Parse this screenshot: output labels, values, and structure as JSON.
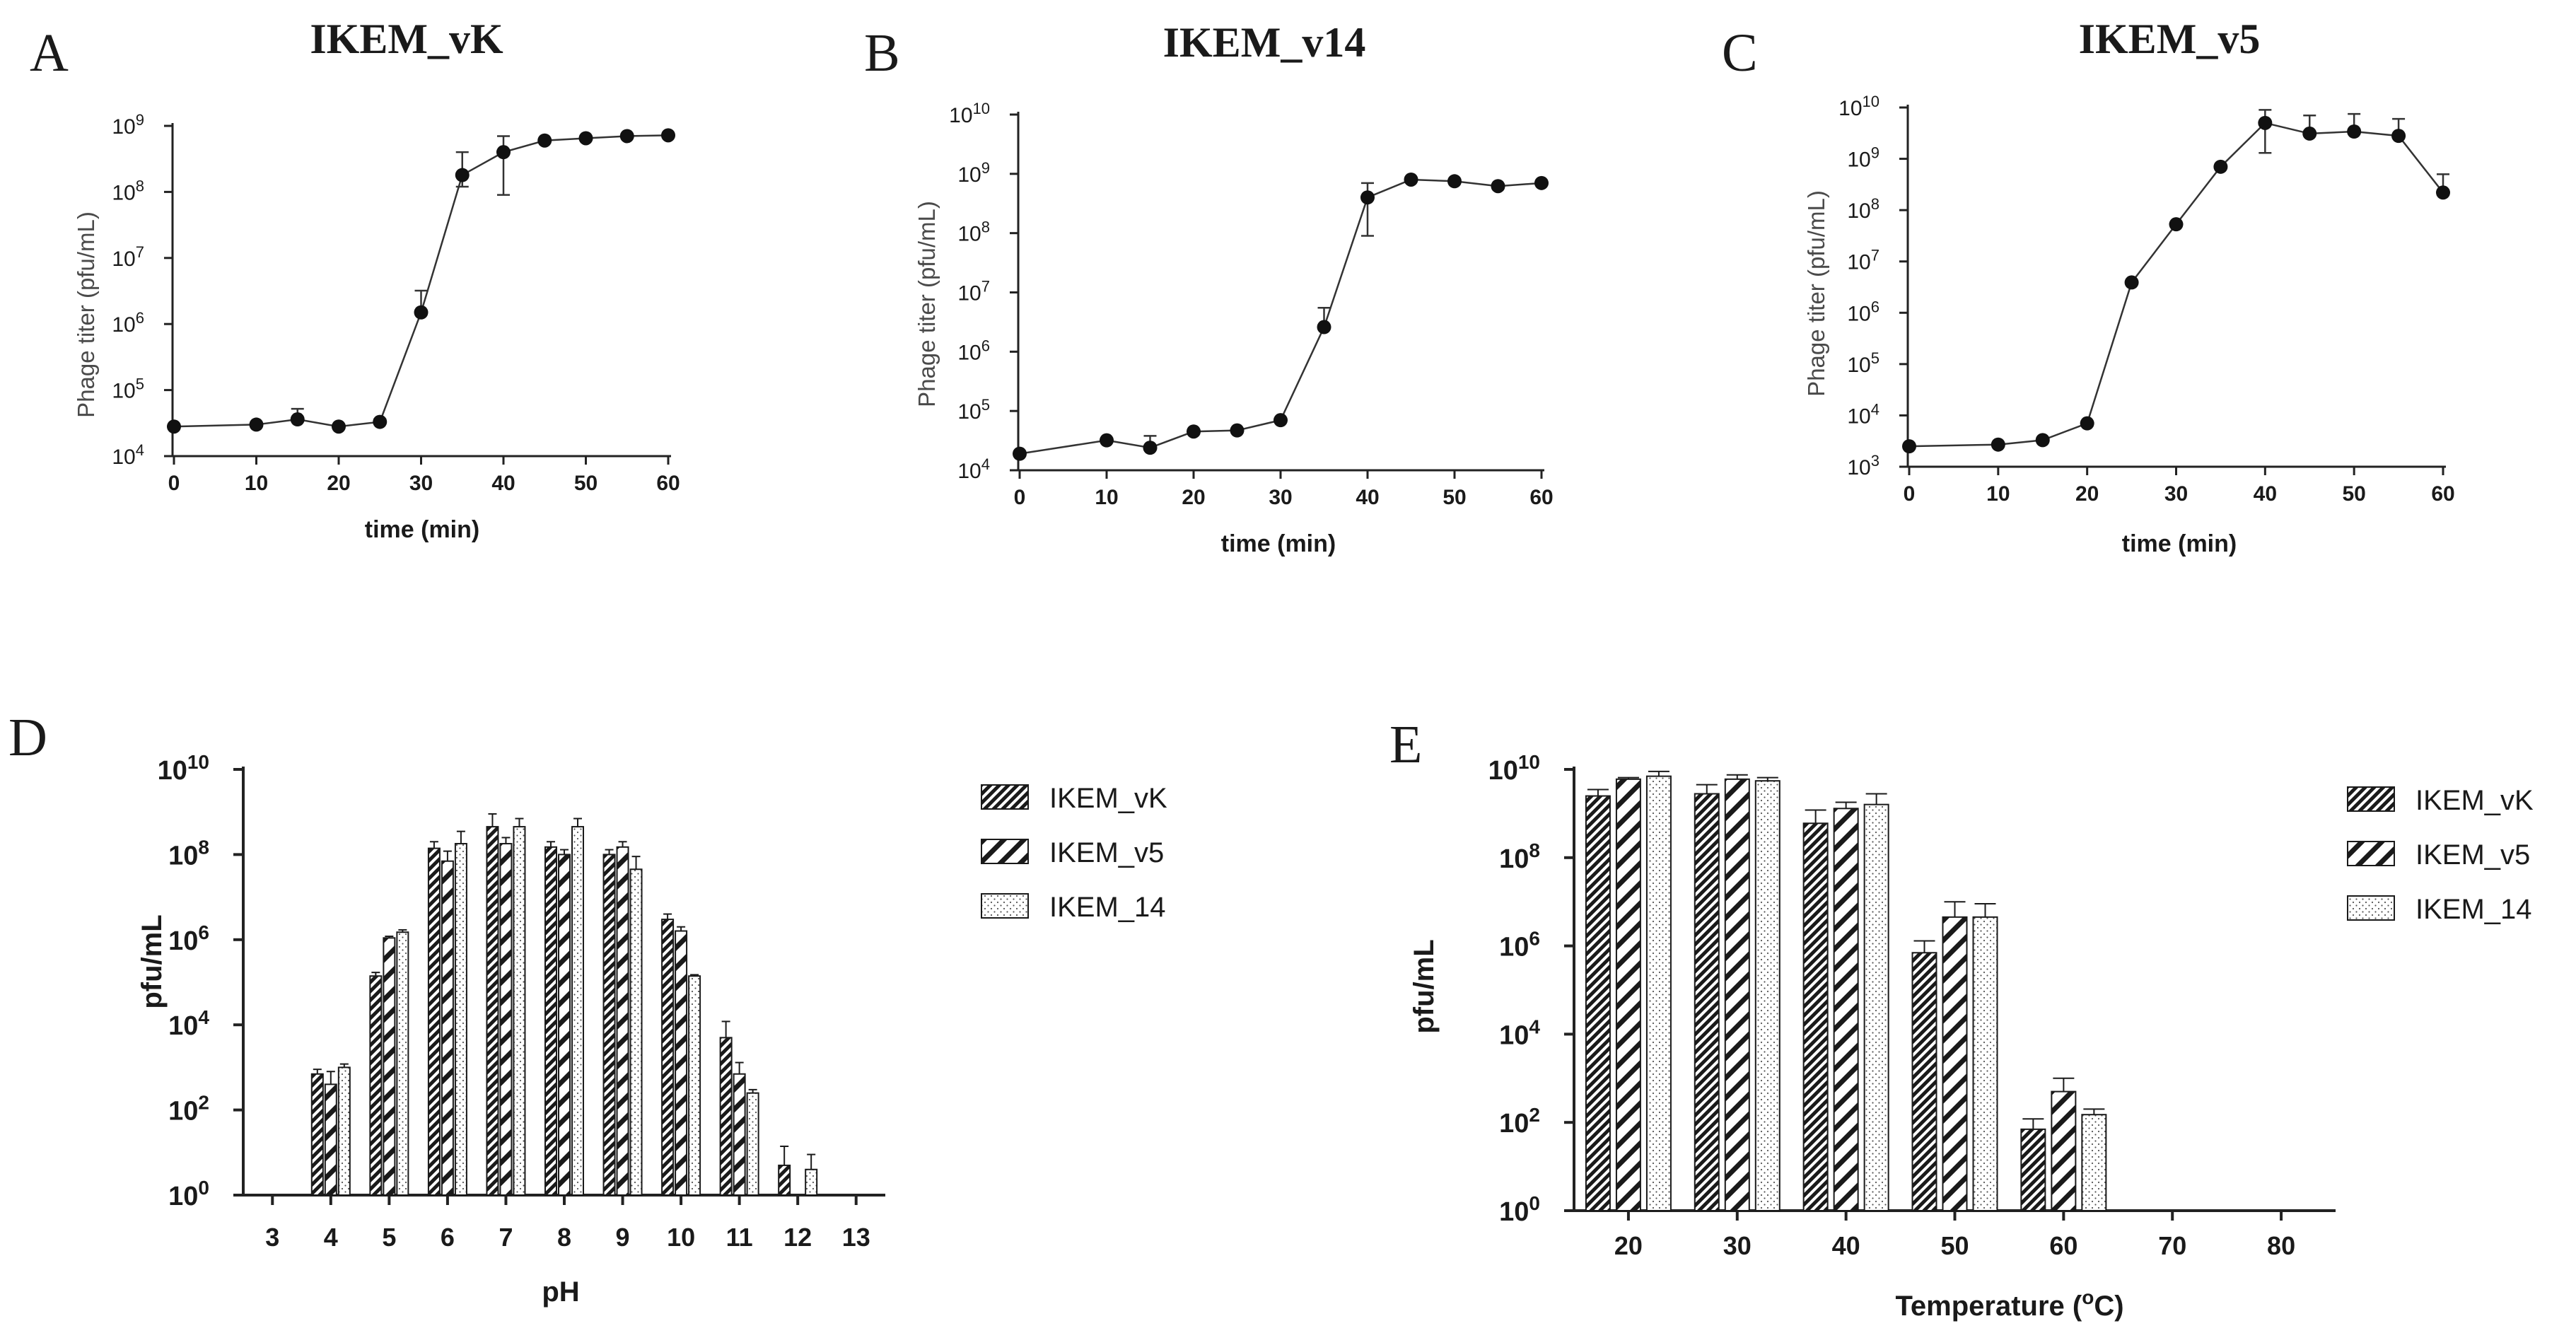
{
  "colors": {
    "ink": "#1a1a1a",
    "axis": "#222222",
    "ylabel_line": "#4a4a4a",
    "background": "#ffffff"
  },
  "chart_data": [
    {
      "panel": "A",
      "type": "line",
      "title": "IKEM_vK",
      "xlabel": "time (min)",
      "ylabel": "Phage titer (pfu/mL)",
      "yscale": "log",
      "ylim_exp": [
        4,
        9
      ],
      "xlim": [
        0,
        60
      ],
      "xticks": [
        0,
        10,
        20,
        30,
        40,
        50,
        60
      ],
      "yticks_exp": [
        4,
        5,
        6,
        7,
        8,
        9
      ],
      "points": [
        {
          "x": 0,
          "y": 28000
        },
        {
          "x": 10,
          "y": 30000
        },
        {
          "x": 15,
          "y": 36000,
          "err_hi": 52000
        },
        {
          "x": 20,
          "y": 28000
        },
        {
          "x": 25,
          "y": 33000,
          "err_hi": 36000
        },
        {
          "x": 30,
          "y": 1500000,
          "err_hi": 3200000
        },
        {
          "x": 35,
          "y": 180000000,
          "err_hi": 400000000,
          "err_lo": 120000000
        },
        {
          "x": 40,
          "y": 400000000,
          "err_hi": 700000000,
          "err_lo": 90000000
        },
        {
          "x": 45,
          "y": 600000000
        },
        {
          "x": 50,
          "y": 650000000
        },
        {
          "x": 55,
          "y": 700000000
        },
        {
          "x": 60,
          "y": 720000000
        }
      ]
    },
    {
      "panel": "B",
      "type": "line",
      "title": "IKEM_v14",
      "xlabel": "time (min)",
      "ylabel": "Phage titer (pfu/mL)",
      "yscale": "log",
      "ylim_exp": [
        4,
        10
      ],
      "xlim": [
        0,
        60
      ],
      "xticks": [
        0,
        10,
        20,
        30,
        40,
        50,
        60
      ],
      "yticks_exp": [
        4,
        5,
        6,
        7,
        8,
        9,
        10
      ],
      "points": [
        {
          "x": 0,
          "y": 19000
        },
        {
          "x": 10,
          "y": 32000
        },
        {
          "x": 15,
          "y": 24000,
          "err_hi": 38000
        },
        {
          "x": 20,
          "y": 45000
        },
        {
          "x": 25,
          "y": 47000
        },
        {
          "x": 30,
          "y": 70000
        },
        {
          "x": 35,
          "y": 2600000,
          "err_hi": 5500000
        },
        {
          "x": 40,
          "y": 400000000,
          "err_hi": 700000000,
          "err_lo": 90000000
        },
        {
          "x": 45,
          "y": 800000000
        },
        {
          "x": 50,
          "y": 750000000
        },
        {
          "x": 55,
          "y": 620000000
        },
        {
          "x": 60,
          "y": 700000000
        }
      ]
    },
    {
      "panel": "C",
      "type": "line",
      "title": "IKEM_v5",
      "xlabel": "time (min)",
      "ylabel": "Phage titer (pfu/mL)",
      "yscale": "log",
      "ylim_exp": [
        3,
        10
      ],
      "xlim": [
        0,
        60
      ],
      "xticks": [
        0,
        10,
        20,
        30,
        40,
        50,
        60
      ],
      "yticks_exp": [
        3,
        4,
        5,
        6,
        7,
        8,
        9,
        10
      ],
      "points": [
        {
          "x": 0,
          "y": 2500
        },
        {
          "x": 10,
          "y": 2700
        },
        {
          "x": 15,
          "y": 3300
        },
        {
          "x": 20,
          "y": 7000
        },
        {
          "x": 25,
          "y": 3900000
        },
        {
          "x": 30,
          "y": 53000000
        },
        {
          "x": 35,
          "y": 700000000
        },
        {
          "x": 40,
          "y": 5000000000,
          "err_hi": 9000000000,
          "err_lo": 1300000000
        },
        {
          "x": 45,
          "y": 3100000000,
          "err_hi": 7000000000
        },
        {
          "x": 50,
          "y": 3400000000,
          "err_hi": 7500000000
        },
        {
          "x": 55,
          "y": 2800000000,
          "err_hi": 6000000000
        },
        {
          "x": 60,
          "y": 220000000,
          "err_hi": 500000000
        }
      ]
    },
    {
      "panel": "D",
      "type": "bar",
      "xlabel": "pH",
      "ylabel": "pfu/mL",
      "yscale": "log",
      "ylim_exp": [
        0,
        10
      ],
      "yticks_exp": [
        0,
        2,
        4,
        6,
        8,
        10
      ],
      "categories": [
        "3",
        "4",
        "5",
        "6",
        "7",
        "8",
        "9",
        "10",
        "11",
        "12",
        "13"
      ],
      "series": [
        {
          "name": "IKEM_vK",
          "pattern": "hatch-dense",
          "values": [
            null,
            700,
            140000,
            140000000,
            450000000,
            150000000,
            100000000,
            3000000,
            5000,
            5,
            null
          ],
          "err_hi": [
            null,
            900,
            170000,
            200000000,
            900000000,
            200000000,
            130000000,
            4000000,
            12000,
            14,
            null
          ]
        },
        {
          "name": "IKEM_v5",
          "pattern": "hatch-wide",
          "values": [
            null,
            400,
            1100000,
            70000000,
            180000000,
            100000000,
            150000000,
            1600000,
            700,
            null,
            null
          ],
          "err_hi": [
            null,
            800,
            1200000,
            120000000,
            250000000,
            130000000,
            200000000,
            2000000,
            1300,
            null,
            null
          ]
        },
        {
          "name": "IKEM_14",
          "pattern": "dots",
          "values": [
            null,
            1000,
            1500000,
            180000000,
            450000000,
            450000000,
            45000000,
            140000,
            250,
            4,
            null
          ],
          "err_hi": [
            null,
            1200,
            1700000,
            350000000,
            700000000,
            700000000,
            90000000,
            150000,
            300,
            9,
            null
          ]
        }
      ]
    },
    {
      "panel": "E",
      "type": "bar",
      "xlabel": "Temperature (",
      "xlabel_sup": "o",
      "xlabel_end": "C)",
      "ylabel": "pfu/mL",
      "yscale": "log",
      "ylim_exp": [
        0,
        10
      ],
      "yticks_exp": [
        0,
        2,
        4,
        6,
        8,
        10
      ],
      "categories": [
        "20",
        "30",
        "40",
        "50",
        "60",
        "70",
        "80"
      ],
      "series": [
        {
          "name": "IKEM_vK",
          "pattern": "hatch-dense",
          "values": [
            2500000000,
            2800000000,
            600000000,
            700000,
            70,
            null,
            null
          ],
          "err_hi": [
            3500000000,
            4500000000,
            1200000000,
            1300000,
            120,
            null,
            null
          ]
        },
        {
          "name": "IKEM_v5",
          "pattern": "hatch-wide",
          "values": [
            6000000000,
            6000000000,
            1300000000,
            4500000,
            500,
            null,
            null
          ],
          "err_hi": [
            6500000000,
            7500000000,
            1800000000,
            10000000,
            1000,
            null,
            null
          ]
        },
        {
          "name": "IKEM_14",
          "pattern": "dots",
          "values": [
            7000000000,
            5500000000,
            1600000000,
            4500000,
            150,
            null,
            null
          ],
          "err_hi": [
            9000000000,
            6500000000,
            2800000000,
            9000000,
            200,
            null,
            null
          ]
        }
      ]
    }
  ]
}
